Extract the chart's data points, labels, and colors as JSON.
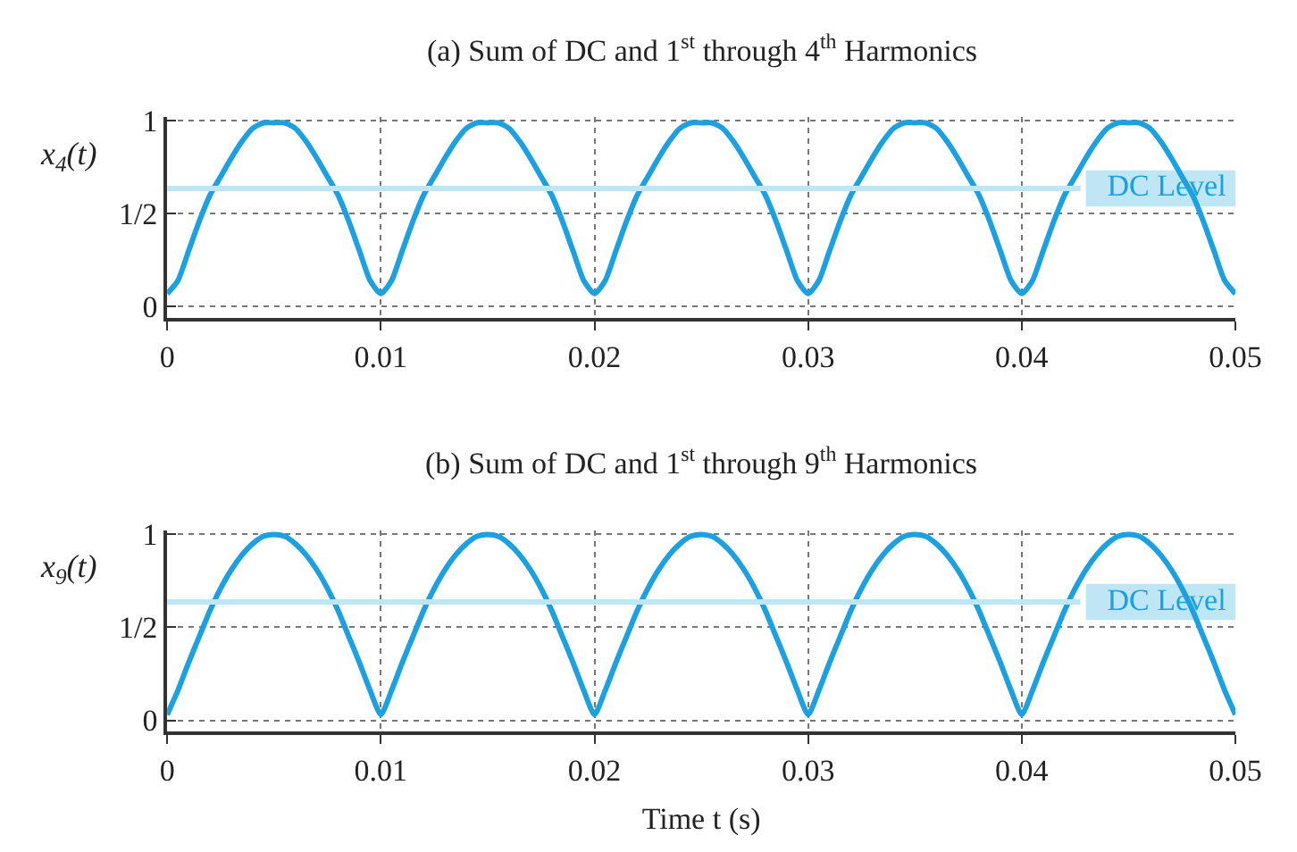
{
  "chart_data": [
    {
      "type": "line",
      "title": "(a) Sum of DC and 1$^{st}$ through 4$^{th}$ Harmonics",
      "ylabel": "x$_{4}$(t)",
      "x": [
        0,
        0.0005,
        0.001,
        0.0015,
        0.002,
        0.0025,
        0.003,
        0.0035,
        0.004,
        0.0045,
        0.005,
        0.0055,
        0.006,
        0.0065,
        0.007,
        0.0075,
        0.008,
        0.0085,
        0.009,
        0.0095,
        0.01,
        0.0105,
        0.011,
        0.0115,
        0.012,
        0.0125,
        0.013,
        0.0135,
        0.014,
        0.0145,
        0.015,
        0.0155,
        0.016,
        0.0165,
        0.017,
        0.0175,
        0.018,
        0.0185,
        0.019,
        0.0195,
        0.02,
        0.0205,
        0.021,
        0.0215,
        0.022,
        0.0225,
        0.023,
        0.0235,
        0.024,
        0.0245,
        0.025,
        0.0255,
        0.026,
        0.0265,
        0.027,
        0.0275,
        0.028,
        0.0285,
        0.029,
        0.0295,
        0.03,
        0.0305,
        0.031,
        0.0315,
        0.032,
        0.0325,
        0.033,
        0.0335,
        0.034,
        0.0345,
        0.035,
        0.0355,
        0.036,
        0.0365,
        0.037,
        0.0375,
        0.038,
        0.0385,
        0.039,
        0.0395,
        0.04,
        0.0405,
        0.041,
        0.0415,
        0.042,
        0.0425,
        0.043,
        0.0435,
        0.044,
        0.0445,
        0.045,
        0.0455,
        0.046,
        0.0465,
        0.047,
        0.0475,
        0.048,
        0.0485,
        0.049,
        0.0495,
        0.05
      ],
      "series": [
        {
          "color": "#1ba1e2",
          "values": [
            0.07,
            0.14,
            0.3,
            0.46,
            0.6,
            0.7,
            0.8,
            0.89,
            0.96,
            0.99,
            0.99,
            0.99,
            0.96,
            0.89,
            0.8,
            0.7,
            0.6,
            0.46,
            0.3,
            0.14,
            0.07,
            0.14,
            0.3,
            0.46,
            0.6,
            0.7,
            0.8,
            0.89,
            0.96,
            0.99,
            0.99,
            0.99,
            0.96,
            0.89,
            0.8,
            0.7,
            0.6,
            0.46,
            0.3,
            0.14,
            0.07,
            0.14,
            0.3,
            0.46,
            0.6,
            0.7,
            0.8,
            0.89,
            0.96,
            0.99,
            0.99,
            0.99,
            0.96,
            0.89,
            0.8,
            0.7,
            0.6,
            0.46,
            0.3,
            0.14,
            0.07,
            0.14,
            0.3,
            0.46,
            0.6,
            0.7,
            0.8,
            0.89,
            0.96,
            0.99,
            0.99,
            0.99,
            0.96,
            0.89,
            0.8,
            0.7,
            0.6,
            0.46,
            0.3,
            0.14,
            0.07,
            0.14,
            0.3,
            0.46,
            0.6,
            0.7,
            0.8,
            0.89,
            0.96,
            0.99,
            0.99,
            0.99,
            0.96,
            0.89,
            0.8,
            0.7,
            0.6,
            0.46,
            0.3,
            0.14,
            0.07
          ]
        }
      ],
      "xlim": [
        0,
        0.05
      ],
      "xticks": [
        0,
        0.01,
        0.02,
        0.03,
        0.04,
        0.05
      ],
      "ylim": [
        -0.06,
        1.02
      ],
      "yticks": [
        0,
        {
          "value": 0.5,
          "label": "1/2"
        },
        1
      ],
      "ref_lines": [
        {
          "axis": "y",
          "value": 0.6366,
          "label": "DC Level",
          "color": "#bfe6f5"
        }
      ],
      "grid": true,
      "line_style": "solid"
    },
    {
      "type": "line",
      "title": "(b) Sum of DC and 1$^{st}$ through 9$^{th}$ Harmonics",
      "ylabel": "x$_{9}$(t)",
      "xlabel": "Time t (s)",
      "x": [
        0,
        0.0005,
        0.001,
        0.0015,
        0.002,
        0.0025,
        0.003,
        0.0035,
        0.004,
        0.0045,
        0.005,
        0.0055,
        0.006,
        0.0065,
        0.007,
        0.0075,
        0.008,
        0.0085,
        0.009,
        0.0095,
        0.01,
        0.0105,
        0.011,
        0.0115,
        0.012,
        0.0125,
        0.013,
        0.0135,
        0.014,
        0.0145,
        0.015,
        0.0155,
        0.016,
        0.0165,
        0.017,
        0.0175,
        0.018,
        0.0185,
        0.019,
        0.0195,
        0.02,
        0.0205,
        0.021,
        0.0215,
        0.022,
        0.0225,
        0.023,
        0.0235,
        0.024,
        0.0245,
        0.025,
        0.0255,
        0.026,
        0.0265,
        0.027,
        0.0275,
        0.028,
        0.0285,
        0.029,
        0.0295,
        0.03,
        0.0305,
        0.031,
        0.0315,
        0.032,
        0.0325,
        0.033,
        0.0335,
        0.034,
        0.0345,
        0.035,
        0.0355,
        0.036,
        0.0365,
        0.037,
        0.0375,
        0.038,
        0.0385,
        0.039,
        0.0395,
        0.04,
        0.0405,
        0.041,
        0.0415,
        0.042,
        0.0425,
        0.043,
        0.0435,
        0.044,
        0.0445,
        0.045,
        0.0455,
        0.046,
        0.0465,
        0.047,
        0.0475,
        0.048,
        0.0485,
        0.049,
        0.0495,
        0.05
      ],
      "series": [
        {
          "color": "#1ba1e2",
          "values": [
            0.03,
            0.16,
            0.31,
            0.45,
            0.59,
            0.71,
            0.81,
            0.89,
            0.95,
            0.99,
            1.0,
            0.99,
            0.95,
            0.89,
            0.81,
            0.71,
            0.59,
            0.45,
            0.31,
            0.16,
            0.03,
            0.16,
            0.31,
            0.45,
            0.59,
            0.71,
            0.81,
            0.89,
            0.95,
            0.99,
            1.0,
            0.99,
            0.95,
            0.89,
            0.81,
            0.71,
            0.59,
            0.45,
            0.31,
            0.16,
            0.03,
            0.16,
            0.31,
            0.45,
            0.59,
            0.71,
            0.81,
            0.89,
            0.95,
            0.99,
            1.0,
            0.99,
            0.95,
            0.89,
            0.81,
            0.71,
            0.59,
            0.45,
            0.31,
            0.16,
            0.03,
            0.16,
            0.31,
            0.45,
            0.59,
            0.71,
            0.81,
            0.89,
            0.95,
            0.99,
            1.0,
            0.99,
            0.95,
            0.89,
            0.81,
            0.71,
            0.59,
            0.45,
            0.31,
            0.16,
            0.03,
            0.16,
            0.31,
            0.45,
            0.59,
            0.71,
            0.81,
            0.89,
            0.95,
            0.99,
            1.0,
            0.99,
            0.95,
            0.89,
            0.81,
            0.71,
            0.59,
            0.45,
            0.31,
            0.16,
            0.03
          ]
        }
      ],
      "xlim": [
        0,
        0.05
      ],
      "xticks": [
        0,
        0.01,
        0.02,
        0.03,
        0.04,
        0.05
      ],
      "ylim": [
        -0.06,
        1.02
      ],
      "yticks": [
        0,
        {
          "value": 0.5,
          "label": "1/2"
        },
        1
      ],
      "ref_lines": [
        {
          "axis": "y",
          "value": 0.6366,
          "label": "DC Level",
          "color": "#bfe6f5"
        }
      ],
      "grid": true,
      "line_style": "solid"
    }
  ]
}
